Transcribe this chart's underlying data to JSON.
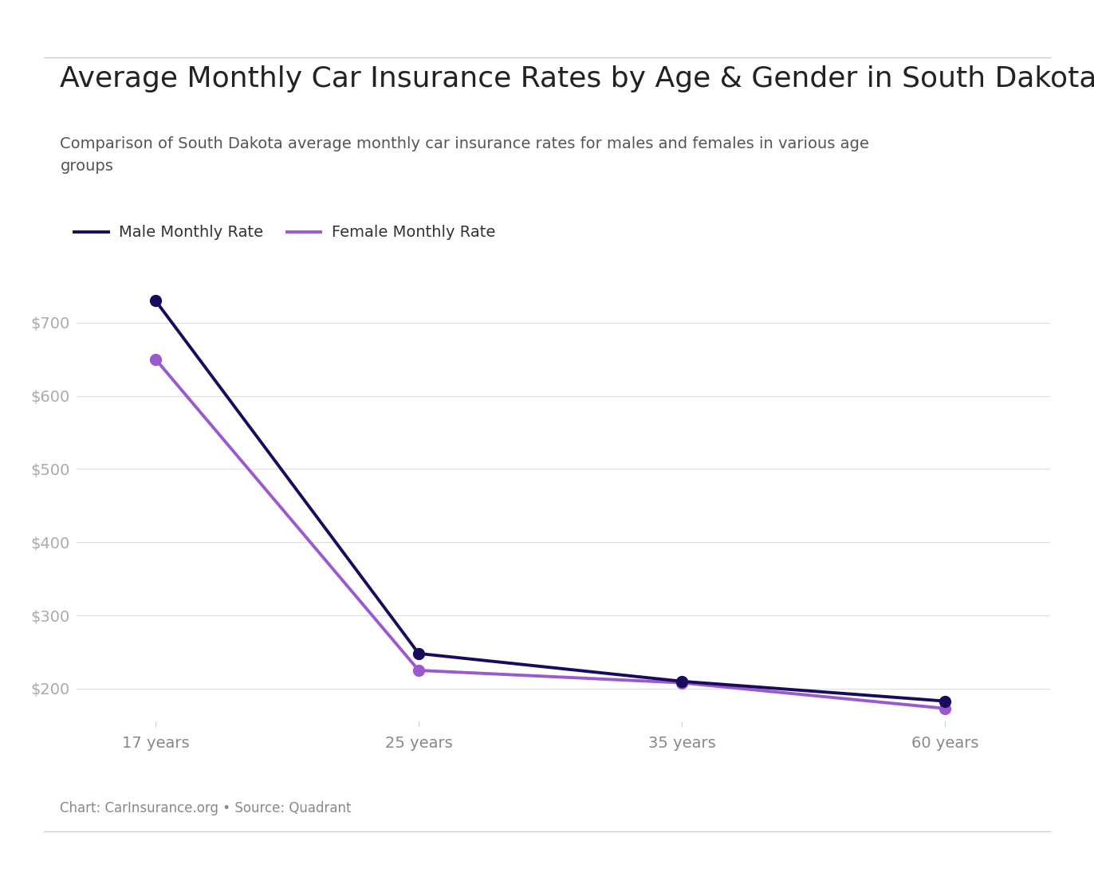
{
  "title": "Average Monthly Car Insurance Rates by Age & Gender in South Dakota",
  "subtitle": "Comparison of South Dakota average monthly car insurance rates for males and females in various age\ngroups",
  "x_labels": [
    "17 years",
    "25 years",
    "35 years",
    "60 years"
  ],
  "x_positions": [
    0,
    1,
    2,
    3
  ],
  "male_values": [
    730,
    248,
    210,
    183
  ],
  "female_values": [
    650,
    225,
    208,
    173
  ],
  "male_color": "#1a0a5e",
  "female_color": "#9b59d0",
  "male_label": "Male Monthly Rate",
  "female_label": "Female Monthly Rate",
  "y_ticks": [
    200,
    300,
    400,
    500,
    600,
    700
  ],
  "y_tick_labels": [
    "$200",
    "$300",
    "$400",
    "$500",
    "$600",
    "$700"
  ],
  "ylim": [
    155,
    780
  ],
  "source_text": "Chart: CarInsurance.org • Source: Quadrant",
  "background_color": "#ffffff",
  "title_fontsize": 26,
  "subtitle_fontsize": 14,
  "tick_label_fontsize": 14,
  "legend_fontsize": 14,
  "source_fontsize": 12,
  "line_width": 2.8,
  "marker_size": 10
}
